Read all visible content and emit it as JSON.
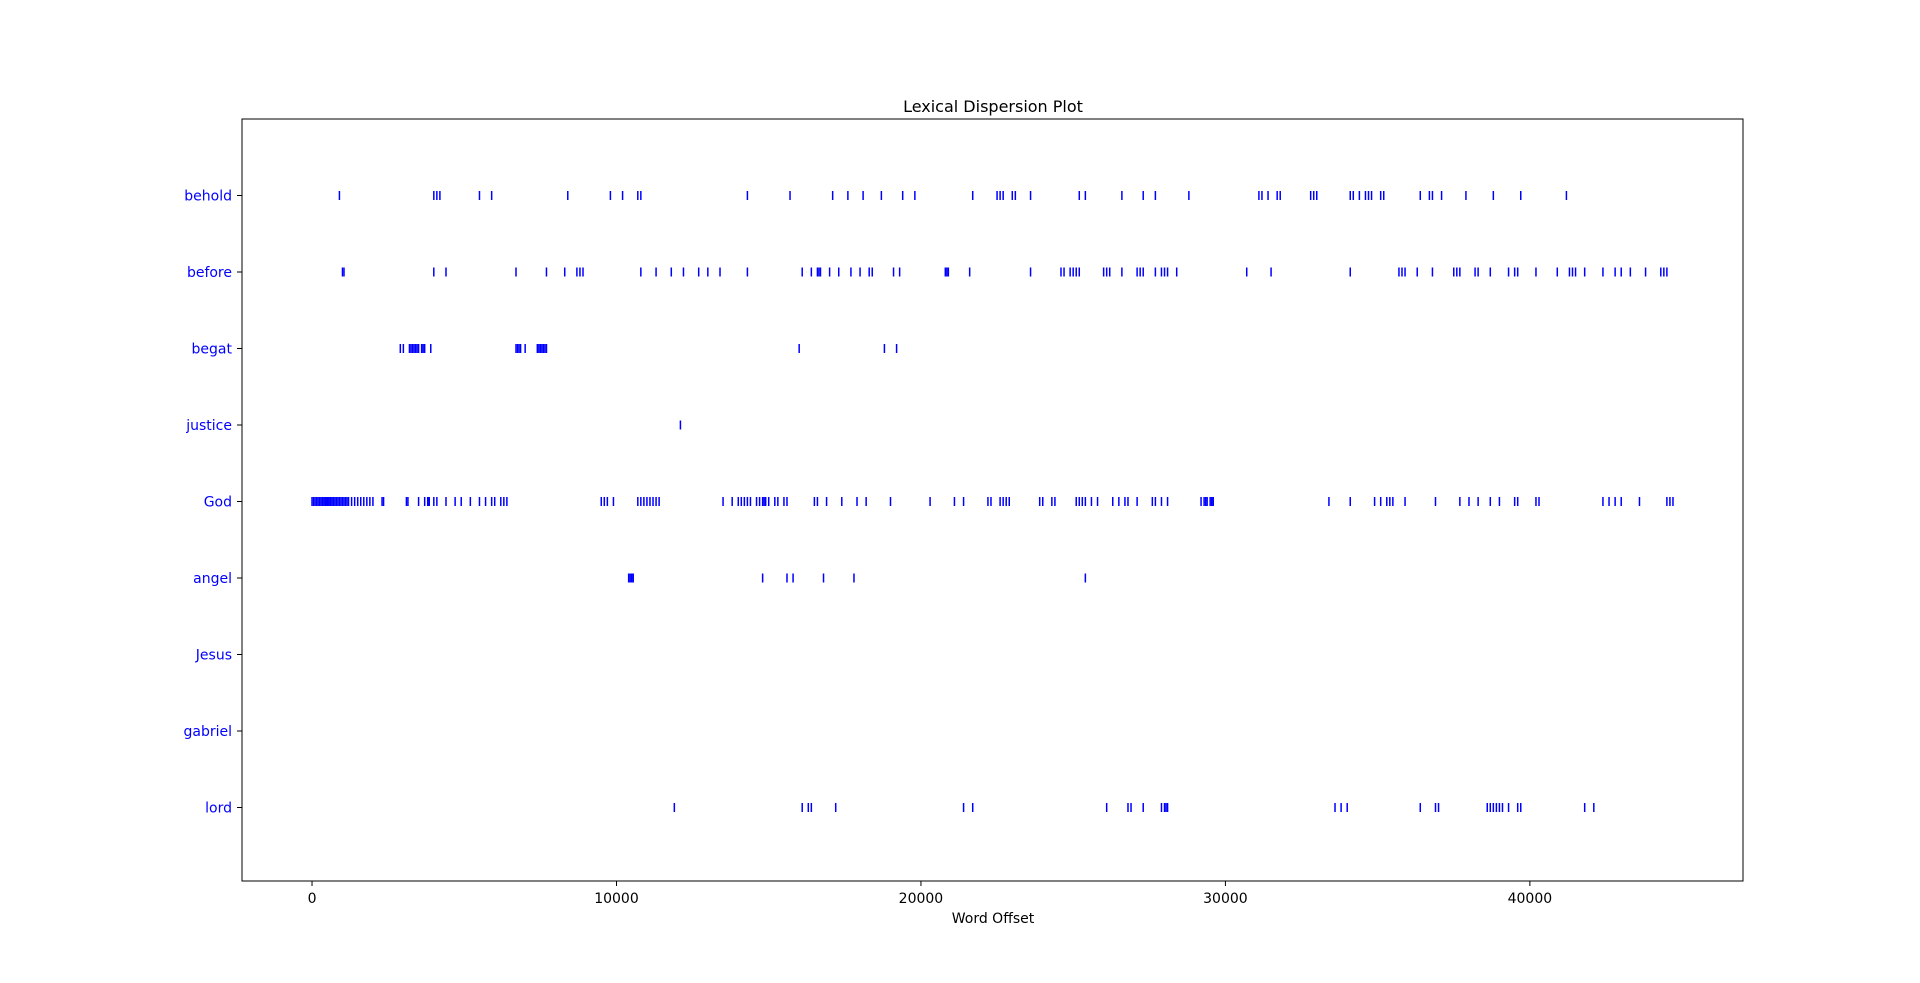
{
  "chart_data": {
    "type": "scatter",
    "title": "Lexical Dispersion Plot",
    "xlabel": "Word Offset",
    "ylabel": "",
    "xlim": [
      -2300,
      47000
    ],
    "xticks": [
      0,
      10000,
      20000,
      30000,
      40000
    ],
    "grid": false,
    "legend": "none",
    "marker": "|",
    "color": "#0000ff",
    "series": [
      {
        "name": "behold",
        "x": [
          900,
          4000,
          4100,
          4200,
          5500,
          5900,
          8400,
          9800,
          10200,
          10700,
          10800,
          14300,
          15700,
          17100,
          17600,
          18100,
          18700,
          19400,
          19800,
          21700,
          22500,
          22600,
          22700,
          23000,
          23100,
          23600,
          25200,
          25400,
          26600,
          27300,
          27700,
          28800,
          31100,
          31200,
          31400,
          31700,
          31800,
          32800,
          32900,
          33000,
          34100,
          34200,
          34400,
          34600,
          34700,
          34800,
          35100,
          35200,
          36400,
          36700,
          36800,
          37100,
          37900,
          38800,
          39700,
          41200
        ]
      },
      {
        "name": "before",
        "x": [
          1000,
          1050,
          4000,
          4400,
          6700,
          7700,
          8300,
          8700,
          8800,
          8900,
          10800,
          11300,
          11800,
          12200,
          12700,
          13000,
          13400,
          14300,
          16100,
          16400,
          16600,
          16650,
          16700,
          17000,
          17300,
          17700,
          18000,
          18300,
          18400,
          19100,
          19300,
          20800,
          20850,
          20900,
          21600,
          23600,
          24600,
          24700,
          24900,
          25000,
          25100,
          25200,
          26000,
          26100,
          26200,
          26600,
          27100,
          27200,
          27300,
          27700,
          27900,
          28000,
          28100,
          28400,
          30700,
          31500,
          34100,
          35700,
          35800,
          35900,
          36300,
          36800,
          37500,
          37600,
          37700,
          38200,
          38300,
          38700,
          39300,
          39500,
          39600,
          40200,
          40900,
          41300,
          41400,
          41500,
          41800,
          42400,
          42800,
          43000,
          43300,
          43800,
          44300,
          44400,
          44500
        ]
      },
      {
        "name": "begat",
        "x": [
          2900,
          3000,
          3200,
          3250,
          3300,
          3350,
          3400,
          3450,
          3500,
          3600,
          3650,
          3700,
          3900,
          6700,
          6750,
          6800,
          6850,
          7000,
          7400,
          7450,
          7500,
          7550,
          7600,
          7650,
          7700,
          16000,
          18800,
          19200
        ]
      },
      {
        "name": "justice",
        "x": [
          12100
        ]
      },
      {
        "name": "God",
        "x": [
          0,
          50,
          100,
          150,
          200,
          250,
          300,
          350,
          400,
          450,
          500,
          550,
          600,
          650,
          700,
          750,
          800,
          850,
          900,
          950,
          1000,
          1050,
          1100,
          1150,
          1200,
          1300,
          1400,
          1500,
          1600,
          1700,
          1800,
          1900,
          2000,
          2300,
          2350,
          3100,
          3150,
          3500,
          3700,
          3800,
          3850,
          4000,
          4100,
          4400,
          4700,
          4900,
          5200,
          5500,
          5700,
          5900,
          6000,
          6200,
          6300,
          6400,
          9500,
          9600,
          9700,
          9900,
          10700,
          10800,
          10900,
          11000,
          11100,
          11200,
          11300,
          11400,
          13500,
          13800,
          14000,
          14100,
          14200,
          14300,
          14400,
          14600,
          14700,
          14800,
          14850,
          14900,
          15000,
          15200,
          15300,
          15500,
          15600,
          16500,
          16600,
          16900,
          17400,
          17900,
          18200,
          19000,
          20300,
          21100,
          21400,
          22200,
          22300,
          22600,
          22700,
          22800,
          22900,
          23900,
          24000,
          24300,
          24400,
          25100,
          25200,
          25300,
          25400,
          25600,
          25800,
          26300,
          26500,
          26700,
          26800,
          27100,
          27600,
          27700,
          27900,
          28100,
          29200,
          29300,
          29350,
          29400,
          29500,
          29550,
          29600,
          33400,
          34100,
          34900,
          35100,
          35300,
          35400,
          35500,
          35900,
          36900,
          37700,
          38000,
          38300,
          38700,
          39000,
          39500,
          39600,
          40200,
          40300,
          42400,
          42600,
          42800,
          43000,
          43600,
          44500,
          44600,
          44700
        ]
      },
      {
        "name": "angel",
        "x": [
          10400,
          10450,
          10500,
          10550,
          14800,
          15600,
          15800,
          16800,
          17800,
          25400
        ]
      },
      {
        "name": "Jesus",
        "x": []
      },
      {
        "name": "gabriel",
        "x": []
      },
      {
        "name": "lord",
        "x": [
          11900,
          16100,
          16300,
          16400,
          17200,
          21400,
          21700,
          26100,
          26800,
          26900,
          27300,
          27900,
          28000,
          28050,
          28100,
          33600,
          33800,
          34000,
          36400,
          36900,
          37000,
          38600,
          38700,
          38800,
          38900,
          39000,
          39100,
          39300,
          39600,
          39700,
          41800,
          42100
        ]
      }
    ]
  }
}
